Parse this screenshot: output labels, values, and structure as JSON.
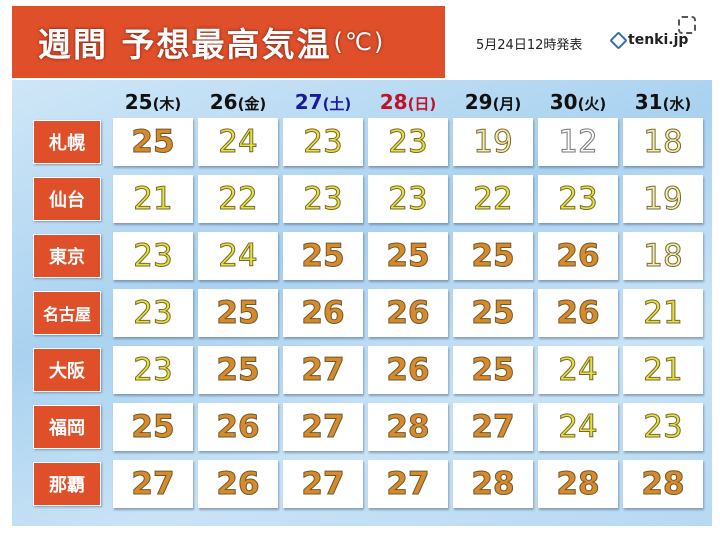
{
  "header": {
    "title": "週間 予想最高気温",
    "unit": "(℃)",
    "issued": "5月24日12時発表",
    "brand": "tenki.jp"
  },
  "colors": {
    "title_bg": "#df4f2a",
    "hot": "#d8892c",
    "warm": "#e6e23a",
    "mild": "#f1edb3",
    "cool": "#ffffff",
    "saturday": "#1a1a9a",
    "sunday": "#c0102a"
  },
  "chart_data": {
    "type": "table",
    "title": "週間 予想最高気温(℃)",
    "columns": [
      {
        "day": "25",
        "weekday": "(木)"
      },
      {
        "day": "26",
        "weekday": "(金)"
      },
      {
        "day": "27",
        "weekday": "(土)"
      },
      {
        "day": "28",
        "weekday": "(日)"
      },
      {
        "day": "29",
        "weekday": "(月)"
      },
      {
        "day": "30",
        "weekday": "(火)"
      },
      {
        "day": "31",
        "weekday": "(水)"
      }
    ],
    "rows": [
      {
        "city": "札幌",
        "values": [
          25,
          24,
          23,
          23,
          19,
          12,
          18
        ]
      },
      {
        "city": "仙台",
        "values": [
          21,
          22,
          23,
          23,
          22,
          23,
          19
        ]
      },
      {
        "city": "東京",
        "values": [
          23,
          24,
          25,
          25,
          25,
          26,
          18
        ]
      },
      {
        "city": "名古屋",
        "values": [
          23,
          25,
          26,
          26,
          25,
          26,
          21
        ]
      },
      {
        "city": "大阪",
        "values": [
          23,
          25,
          27,
          26,
          25,
          24,
          21
        ]
      },
      {
        "city": "福岡",
        "values": [
          25,
          26,
          27,
          28,
          27,
          24,
          23
        ]
      },
      {
        "city": "那覇",
        "values": [
          27,
          26,
          27,
          27,
          28,
          28,
          28
        ]
      }
    ]
  }
}
